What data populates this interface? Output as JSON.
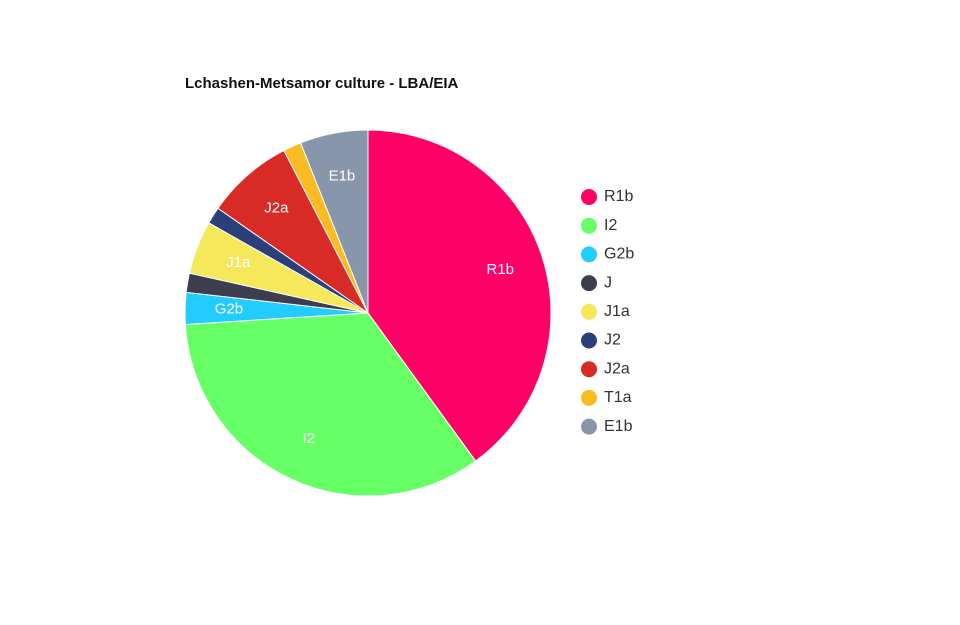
{
  "chart_data": {
    "type": "pie",
    "title": "Lchashen-Metsamor culture - LBA/EIA",
    "categories": [
      "R1b",
      "I2",
      "G2b",
      "J",
      "J1a",
      "J2",
      "J2a",
      "T1a",
      "E1b"
    ],
    "values": [
      40,
      34,
      2.8,
      1.7,
      4.7,
      1.5,
      7.7,
      1.6,
      6
    ],
    "colors": [
      "#ff0066",
      "#66ff66",
      "#22ccff",
      "#3d3d50",
      "#f5e85a",
      "#2b3f7a",
      "#d92b26",
      "#fbbb22",
      "#8896ab"
    ],
    "legend": "right"
  }
}
